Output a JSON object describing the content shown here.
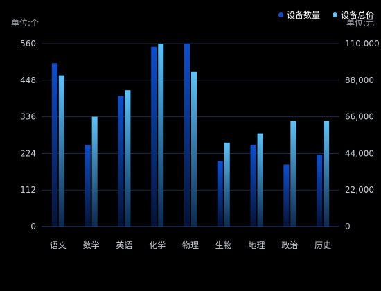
{
  "legend": {
    "series_a": "设备数量",
    "series_b": "设备总价"
  },
  "units": {
    "left": "单位:个",
    "right": "单位:元"
  },
  "colors": {
    "series_a_top": "#0d4fd1",
    "series_a_bottom": "#031338",
    "series_b_top": "#5cc3fa",
    "series_b_bottom": "#0a2850",
    "axis_text": "#c8ccd2",
    "grid": "#1f2a44",
    "axis_line": "#24428a"
  },
  "chart_data": {
    "type": "bar",
    "categories": [
      "语文",
      "数学",
      "英语",
      "化学",
      "物理",
      "生物",
      "地理",
      "政治",
      "历史"
    ],
    "series": [
      {
        "name": "设备数量",
        "axis": "left",
        "values": [
          500,
          250,
          400,
          550,
          560,
          200,
          250,
          190,
          220
        ]
      },
      {
        "name": "设备总价",
        "axis": "right",
        "values": [
          91000,
          66000,
          82000,
          110000,
          93000,
          50500,
          56000,
          63500,
          63500
        ]
      }
    ],
    "y_left": {
      "ticks": [
        "0",
        "112",
        "224",
        "336",
        "448",
        "560"
      ],
      "ylim": [
        0,
        560
      ]
    },
    "y_right": {
      "ticks": [
        "0",
        "22,000",
        "44,000",
        "66,000",
        "88,000",
        "110,000"
      ],
      "ylim": [
        0,
        110000
      ]
    },
    "grid": true,
    "legend_position": "top-right"
  }
}
